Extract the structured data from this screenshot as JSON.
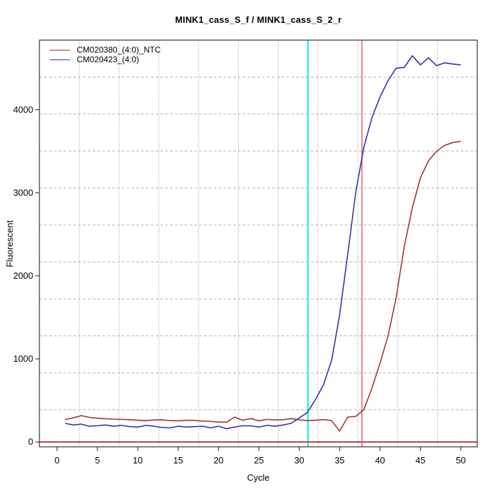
{
  "title": "MINK1_cass_S_f / MINK1_cass_S_2_r",
  "axes": {
    "x_label": "Cycle",
    "y_label": "Fluorescent",
    "x_ticks": [
      0,
      5,
      10,
      15,
      20,
      25,
      30,
      35,
      40,
      45,
      50
    ],
    "y_ticks": [
      0,
      1000,
      2000,
      3000,
      4000
    ]
  },
  "legend": [
    {
      "label": "CM020380_(4:0)_NTC",
      "color": "#a03232"
    },
    {
      "label": "CM020423_(4:0)",
      "color": "#3232a8"
    }
  ],
  "chart_data": {
    "type": "line",
    "title": "MINK1_cass_S_f / MINK1_cass_S_2_r",
    "xlabel": "Cycle",
    "ylabel": "Fluorescent",
    "xlim": [
      -2.18,
      52.04
    ],
    "ylim": [
      -58,
      4838
    ],
    "grid": "on",
    "grid_divisions": 11,
    "legend_position": "top-left",
    "x": [
      1,
      2,
      3,
      4,
      5,
      6,
      7,
      8,
      9,
      10,
      11,
      12,
      13,
      14,
      15,
      16,
      17,
      18,
      19,
      20,
      21,
      22,
      23,
      24,
      25,
      26,
      27,
      28,
      29,
      30,
      31,
      32,
      33,
      34,
      35,
      36,
      37,
      38,
      39,
      40,
      41,
      42,
      43,
      44,
      45,
      46,
      47,
      48,
      49,
      50
    ],
    "series": [
      {
        "name": "CM020380_(4:0)_NTC",
        "color": "#a03232",
        "values": [
          270,
          290,
          318,
          296,
          286,
          280,
          275,
          272,
          268,
          262,
          258,
          265,
          266,
          258,
          255,
          262,
          260,
          252,
          248,
          240,
          238,
          300,
          262,
          282,
          255,
          272,
          265,
          268,
          282,
          266,
          258,
          262,
          270,
          258,
          131,
          300,
          308,
          390,
          650,
          950,
          1280,
          1740,
          2350,
          2820,
          3180,
          3385,
          3500,
          3570,
          3605,
          3620
        ]
      },
      {
        "name": "CM020423_(4:0)",
        "color": "#3232a8",
        "values": [
          225,
          205,
          215,
          190,
          196,
          205,
          190,
          200,
          185,
          180,
          200,
          190,
          175,
          170,
          190,
          180,
          185,
          190,
          170,
          190,
          160,
          180,
          196,
          195,
          180,
          200,
          190,
          205,
          225,
          290,
          355,
          510,
          690,
          980,
          1530,
          2260,
          3010,
          3550,
          3905,
          4155,
          4350,
          4500,
          4510,
          4650,
          4540,
          4625,
          4530,
          4565,
          4550,
          4540
        ]
      }
    ],
    "reference_lines": [
      {
        "orientation": "vertical",
        "x": 31.07,
        "color": "#00eeee",
        "width": 2
      },
      {
        "orientation": "vertical",
        "x": 37.76,
        "color": "#e08282",
        "width": 2
      },
      {
        "orientation": "horizontal",
        "y": 0,
        "color": "#b54848",
        "width": 2
      }
    ]
  }
}
